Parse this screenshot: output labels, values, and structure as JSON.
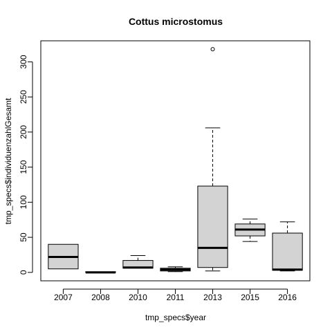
{
  "chart_data": {
    "type": "boxplot",
    "title": "Cottus microstomus",
    "xlabel": "tmp_specs$year",
    "ylabel": "tmp_specs$individuenzahlGesamt",
    "ylim": [
      -12,
      330
    ],
    "yticks": [
      0,
      50,
      100,
      150,
      200,
      250,
      300
    ],
    "categories": [
      "2007",
      "2008",
      "2010",
      "2011",
      "2013",
      "2015",
      "2016"
    ],
    "boxes": [
      {
        "category": "2007",
        "min": 5,
        "q1": 5,
        "median": 22,
        "q3": 40,
        "max": 40,
        "outliers": []
      },
      {
        "category": "2008",
        "min": 0,
        "q1": 0,
        "median": 0,
        "q3": 1,
        "max": 1,
        "outliers": []
      },
      {
        "category": "2010",
        "min": 6,
        "q1": 6,
        "median": 7,
        "q3": 17,
        "max": 24,
        "outliers": []
      },
      {
        "category": "2011",
        "min": 1,
        "q1": 2,
        "median": 4,
        "q3": 6,
        "max": 8,
        "outliers": []
      },
      {
        "category": "2013",
        "min": 2,
        "q1": 7,
        "median": 35,
        "q3": 123,
        "max": 206,
        "outliers": [
          318
        ]
      },
      {
        "category": "2015",
        "min": 44,
        "q1": 52,
        "median": 61,
        "q3": 69,
        "max": 76,
        "outliers": []
      },
      {
        "category": "2016",
        "min": 2,
        "q1": 3,
        "median": 4,
        "q3": 56,
        "max": 72,
        "outliers": []
      }
    ],
    "colors": {
      "box_fill": "#d3d3d3",
      "stroke": "#000000",
      "background": "#ffffff"
    },
    "grid": false,
    "legend": "none"
  }
}
